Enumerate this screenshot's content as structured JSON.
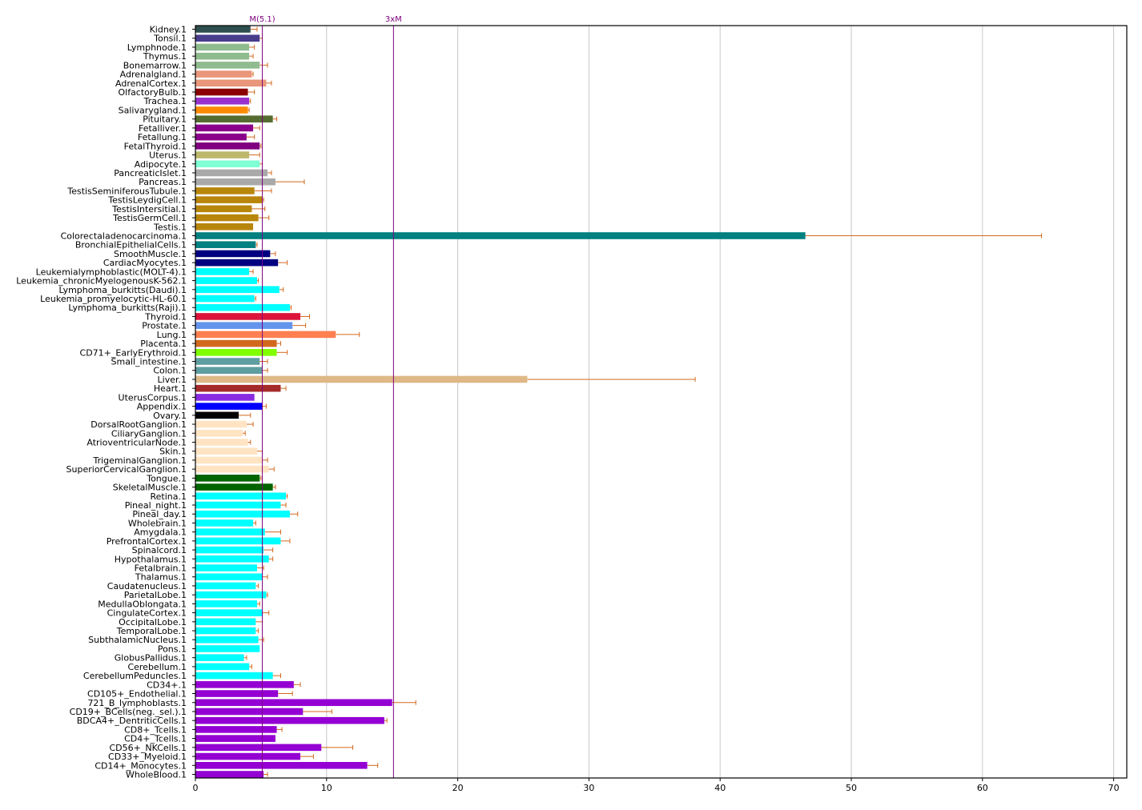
{
  "chart_data": {
    "type": "bar",
    "orientation": "horizontal",
    "xlim": [
      0,
      71
    ],
    "xticks": [
      0,
      10,
      20,
      30,
      40,
      50,
      60,
      70
    ],
    "grid": "vertical",
    "error_bar_color": "#d2691e",
    "reference_lines": [
      {
        "label": "M(5.1)",
        "value": 5.1,
        "color": "#800080"
      },
      {
        "label": "3xM",
        "value": 15.1,
        "color": "#800080"
      }
    ],
    "bars": [
      {
        "label": "Kidney.1",
        "value": 4.2,
        "error": 0.5,
        "color": "#2f4f4f"
      },
      {
        "label": "Tonsil.1",
        "value": 4.9,
        "error": 0.2,
        "color": "#483d8b"
      },
      {
        "label": "Lymphnode.1",
        "value": 4.1,
        "error": 0.4,
        "color": "#8fbc8f"
      },
      {
        "label": "Thymus.1",
        "value": 4.1,
        "error": 0.3,
        "color": "#8fbc8f"
      },
      {
        "label": "Bonemarrow.1",
        "value": 4.9,
        "error": 0.6,
        "color": "#8fbc8f"
      },
      {
        "label": "Adrenalgland.1",
        "value": 4.3,
        "error": 0.1,
        "color": "#e9967a"
      },
      {
        "label": "AdrenalCortex.1",
        "value": 5.4,
        "error": 0.4,
        "color": "#e9967a"
      },
      {
        "label": "OlfactoryBulb.1",
        "value": 4.0,
        "error": 0.5,
        "color": "#8b0000"
      },
      {
        "label": "Trachea.1",
        "value": 4.1,
        "error": 0.1,
        "color": "#9932cc"
      },
      {
        "label": "Salivarygland.1",
        "value": 4.0,
        "error": 0.1,
        "color": "#ff8c00"
      },
      {
        "label": "Pituitary.1",
        "value": 5.9,
        "error": 0.3,
        "color": "#556b2f"
      },
      {
        "label": "Fetalliver.1",
        "value": 4.4,
        "error": 0.5,
        "color": "#8b008b"
      },
      {
        "label": "Fetallung.1",
        "value": 3.9,
        "error": 0.6,
        "color": "#8b008b"
      },
      {
        "label": "FetalThyroid.1",
        "value": 4.9,
        "error": 0.1,
        "color": "#800080"
      },
      {
        "label": "Uterus.1",
        "value": 4.1,
        "error": 0.8,
        "color": "#bdb76b"
      },
      {
        "label": "Adipocyte.1",
        "value": 4.9,
        "error": 0.2,
        "color": "#7fffd4"
      },
      {
        "label": "PancreaticIslet.1",
        "value": 5.5,
        "error": 0.3,
        "color": "#a9a9a9"
      },
      {
        "label": "Pancreas.1",
        "value": 6.1,
        "error": 2.2,
        "color": "#a9a9a9"
      },
      {
        "label": "TestisSeminiferousTubule.1",
        "value": 4.5,
        "error": 1.3,
        "color": "#b8860b"
      },
      {
        "label": "TestisLeydigCell.1",
        "value": 5.1,
        "error": 0.1,
        "color": "#b8860b"
      },
      {
        "label": "TestisIntersitial.1",
        "value": 4.3,
        "error": 1.0,
        "color": "#b8860b"
      },
      {
        "label": "TestisGermCell.1",
        "value": 4.8,
        "error": 0.8,
        "color": "#b8860b"
      },
      {
        "label": "Testis.1",
        "value": 4.4,
        "error": 0.0,
        "color": "#b8860b"
      },
      {
        "label": "Colorectaladenocarcinoma.1",
        "value": 46.5,
        "error": 18.0,
        "color": "#008080"
      },
      {
        "label": "BronchialEpithelialCells.1",
        "value": 4.6,
        "error": 0.1,
        "color": "#008080"
      },
      {
        "label": "SmoothMuscle.1",
        "value": 5.7,
        "error": 0.4,
        "color": "#000080"
      },
      {
        "label": "CardiacMyocytes.1",
        "value": 6.3,
        "error": 0.7,
        "color": "#000080"
      },
      {
        "label": "Leukemialymphoblastic(MOLT-4).1",
        "value": 4.1,
        "error": 0.3,
        "color": "#00ffff"
      },
      {
        "label": "Leukemia_chronicMyelogenousK-562.1",
        "value": 4.7,
        "error": 0.1,
        "color": "#00ffff"
      },
      {
        "label": "Lymphoma_burkitts(Daudi).1",
        "value": 6.4,
        "error": 0.3,
        "color": "#00ffff"
      },
      {
        "label": "Leukemia_promyelocytic-HL-60.1",
        "value": 4.5,
        "error": 0.1,
        "color": "#00ffff"
      },
      {
        "label": "Lymphoma_burkitts(Raji).1",
        "value": 7.2,
        "error": 0.1,
        "color": "#00ffff"
      },
      {
        "label": "Thyroid.1",
        "value": 8.0,
        "error": 0.7,
        "color": "#dc143c"
      },
      {
        "label": "Prostate.1",
        "value": 7.4,
        "error": 1.0,
        "color": "#6495ed"
      },
      {
        "label": "Lung.1",
        "value": 10.7,
        "error": 1.8,
        "color": "#ff7f50"
      },
      {
        "label": "Placenta.1",
        "value": 6.2,
        "error": 0.3,
        "color": "#d2691e"
      },
      {
        "label": "CD71+_EarlyErythroid.1",
        "value": 6.2,
        "error": 0.8,
        "color": "#7fff00"
      },
      {
        "label": "Small_intestine.1",
        "value": 4.9,
        "error": 0.6,
        "color": "#5f9ea0"
      },
      {
        "label": "Colon.1",
        "value": 5.1,
        "error": 0.4,
        "color": "#5f9ea0"
      },
      {
        "label": "Liver.1",
        "value": 25.3,
        "error": 12.8,
        "color": "#deb887"
      },
      {
        "label": "Heart.1",
        "value": 6.5,
        "error": 0.4,
        "color": "#a52a2a"
      },
      {
        "label": "UterusCorpus.1",
        "value": 4.5,
        "error": 0.0,
        "color": "#8a2be2"
      },
      {
        "label": "Appendix.1",
        "value": 5.1,
        "error": 0.3,
        "color": "#0000ff"
      },
      {
        "label": "Ovary.1",
        "value": 3.3,
        "error": 0.9,
        "color": "#000000"
      },
      {
        "label": "DorsalRootGanglion.1",
        "value": 3.9,
        "error": 0.5,
        "color": "#ffe4c4"
      },
      {
        "label": "CiliaryGanglion.1",
        "value": 3.6,
        "error": 0.2,
        "color": "#ffe4c4"
      },
      {
        "label": "AtrioventricularNode.1",
        "value": 4.0,
        "error": 0.2,
        "color": "#ffe4c4"
      },
      {
        "label": "Skin.1",
        "value": 4.7,
        "error": 0.4,
        "color": "#ffe4c4"
      },
      {
        "label": "TrigeminalGanglion.1",
        "value": 5.1,
        "error": 0.4,
        "color": "#ffe4c4"
      },
      {
        "label": "SuperiorCervicalGanglion.1",
        "value": 5.6,
        "error": 0.4,
        "color": "#ffe4c4"
      },
      {
        "label": "Tongue.1",
        "value": 4.9,
        "error": 0.1,
        "color": "#006400"
      },
      {
        "label": "SkeletalMuscle.1",
        "value": 5.9,
        "error": 0.2,
        "color": "#006400"
      },
      {
        "label": "Retina.1",
        "value": 6.9,
        "error": 0.1,
        "color": "#00ffff"
      },
      {
        "label": "Pineal_night.1",
        "value": 6.5,
        "error": 0.4,
        "color": "#00ffff"
      },
      {
        "label": "Pineal_day.1",
        "value": 7.2,
        "error": 0.6,
        "color": "#00ffff"
      },
      {
        "label": "Wholebrain.1",
        "value": 4.4,
        "error": 0.2,
        "color": "#00ffff"
      },
      {
        "label": "Amygdala.1",
        "value": 5.3,
        "error": 1.2,
        "color": "#00ffff"
      },
      {
        "label": "PrefrontalCortex.1",
        "value": 6.5,
        "error": 0.7,
        "color": "#00ffff"
      },
      {
        "label": "Spinalcord.1",
        "value": 5.2,
        "error": 0.7,
        "color": "#00ffff"
      },
      {
        "label": "Hypothalamus.1",
        "value": 5.6,
        "error": 0.3,
        "color": "#00ffff"
      },
      {
        "label": "Fetalbrain.1",
        "value": 4.7,
        "error": 0.5,
        "color": "#00ffff"
      },
      {
        "label": "Thalamus.1",
        "value": 5.1,
        "error": 0.4,
        "color": "#00ffff"
      },
      {
        "label": "Caudatenucleus.1",
        "value": 4.6,
        "error": 0.2,
        "color": "#00ffff"
      },
      {
        "label": "ParietalLobe.1",
        "value": 5.4,
        "error": 0.1,
        "color": "#00ffff"
      },
      {
        "label": "MedullaOblongata.1",
        "value": 4.7,
        "error": 0.2,
        "color": "#00ffff"
      },
      {
        "label": "CingulateCortex.1",
        "value": 5.1,
        "error": 0.5,
        "color": "#00ffff"
      },
      {
        "label": "OccipitalLobe.1",
        "value": 4.6,
        "error": 0.5,
        "color": "#00ffff"
      },
      {
        "label": "TemporalLobe.1",
        "value": 4.6,
        "error": 0.2,
        "color": "#00ffff"
      },
      {
        "label": "SubthalamicNucleus.1",
        "value": 4.8,
        "error": 0.4,
        "color": "#00ffff"
      },
      {
        "label": "Pons.1",
        "value": 4.9,
        "error": 0.0,
        "color": "#00ffff"
      },
      {
        "label": "GlobusPallidus.1",
        "value": 3.7,
        "error": 0.2,
        "color": "#00ffff"
      },
      {
        "label": "Cerebellum.1",
        "value": 4.1,
        "error": 0.2,
        "color": "#00ffff"
      },
      {
        "label": "CerebellumPeduncles.1",
        "value": 5.9,
        "error": 0.6,
        "color": "#00ffff"
      },
      {
        "label": "CD34+.1",
        "value": 7.5,
        "error": 0.5,
        "color": "#9400d3"
      },
      {
        "label": "CD105+_Endothelial.1",
        "value": 6.3,
        "error": 1.1,
        "color": "#9400d3"
      },
      {
        "label": "721_B_lymphoblasts.1",
        "value": 15.0,
        "error": 1.8,
        "color": "#9400d3"
      },
      {
        "label": "CD19+_BCells(neg._sel.).1",
        "value": 8.2,
        "error": 2.2,
        "color": "#9400d3"
      },
      {
        "label": "BDCA4+_DentriticCells.1",
        "value": 14.4,
        "error": 0.2,
        "color": "#9400d3"
      },
      {
        "label": "CD8+_Tcells.1",
        "value": 6.2,
        "error": 0.4,
        "color": "#9400d3"
      },
      {
        "label": "CD4+_Tcells.1",
        "value": 6.1,
        "error": 0.0,
        "color": "#9400d3"
      },
      {
        "label": "CD56+_NKCells.1",
        "value": 9.6,
        "error": 2.4,
        "color": "#9400d3"
      },
      {
        "label": "CD33+_Myeloid.1",
        "value": 8.0,
        "error": 1.0,
        "color": "#9400d3"
      },
      {
        "label": "CD14+_Monocytes.1",
        "value": 13.1,
        "error": 0.8,
        "color": "#9400d3"
      },
      {
        "label": "WholeBlood.1",
        "value": 5.2,
        "error": 0.3,
        "color": "#9400d3"
      }
    ]
  }
}
